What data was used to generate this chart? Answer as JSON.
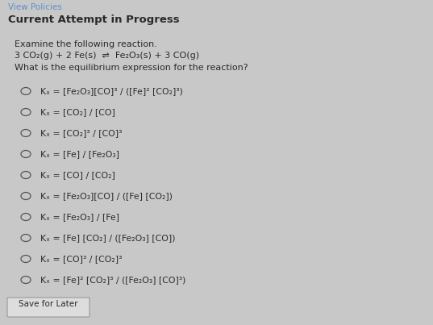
{
  "bg_color": "#c8c8c8",
  "header_color": "#5b8fc9",
  "header_text": "View Policies",
  "bold_text": "Current Attempt in Progress",
  "body_lines": [
    "Examine the following reaction.",
    "3 CO₂(g) + 2 Fe(s)  ⇌  Fe₂O₃(s) + 3 CO(g)",
    "What is the equilibrium expression for the reaction?"
  ],
  "options": [
    "Kₓ = [Fe₂O₃][CO]³ / ([Fe]² [CO₂]³)",
    "Kₓ = [CO₂] / [CO]",
    "Kₓ = [CO₂]³ / [CO]³",
    "Kₓ = [Fe] / [Fe₂O₃]",
    "Kₓ = [CO] / [CO₂]",
    "Kₓ = [Fe₂O₃][CO] / ([Fe] [CO₂])",
    "Kₓ = [Fe₂O₃] / [Fe]",
    "Kₓ = [Fe] [CO₂] / ([Fe₂O₃] [CO])",
    "Kₓ = [CO]³ / [CO₂]³",
    "Kₓ = [Fe]² [CO₂]³ / ([Fe₂O₃] [CO]³)"
  ],
  "save_button_text": "Save for Later",
  "text_color": "#2a2a2a",
  "circle_color": "#555555"
}
